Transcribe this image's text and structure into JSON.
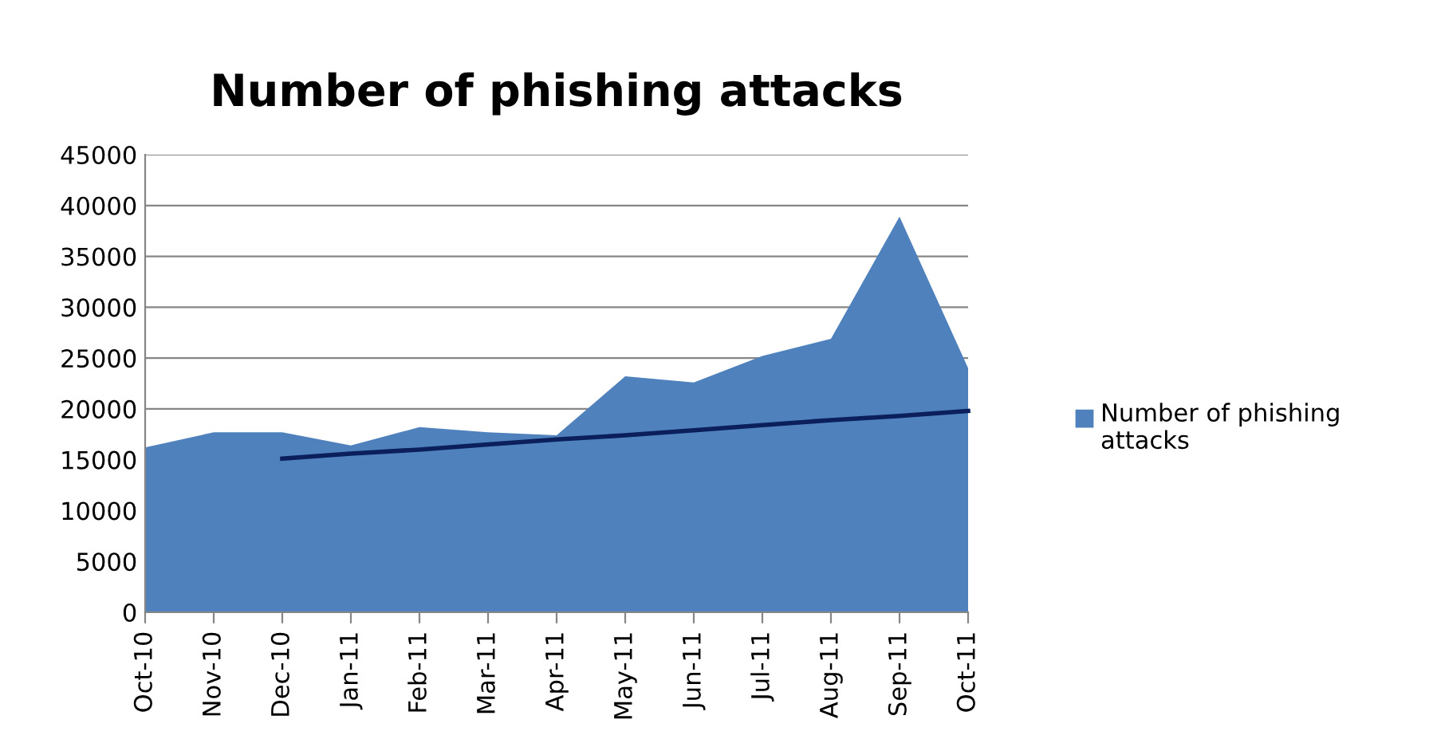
{
  "chart_data": {
    "type": "area",
    "title": "Number of phishing attacks",
    "categories": [
      "Oct-10",
      "Nov-10",
      "Dec-10",
      "Jan-11",
      "Feb-11",
      "Mar-11",
      "Apr-11",
      "May-11",
      "Jun-11",
      "Jul-11",
      "Aug-11",
      "Sep-11",
      "Oct-11"
    ],
    "series": [
      {
        "name": "Number of phishing attacks",
        "color": "#4f81bd",
        "values": [
          16200,
          17700,
          17700,
          16400,
          18200,
          17700,
          17400,
          23200,
          22600,
          25200,
          26900,
          38900,
          24000
        ]
      },
      {
        "type": "line",
        "color": "#0b1f5c",
        "values": [
          null,
          null,
          15100,
          15600,
          16000,
          16500,
          17000,
          17400,
          17900,
          18400,
          18900,
          19300,
          19800
        ]
      }
    ],
    "ylim": [
      0,
      45000
    ],
    "yticks": [
      0,
      5000,
      10000,
      15000,
      20000,
      25000,
      30000,
      35000,
      40000,
      45000
    ],
    "grid": "y",
    "legend": "right"
  }
}
